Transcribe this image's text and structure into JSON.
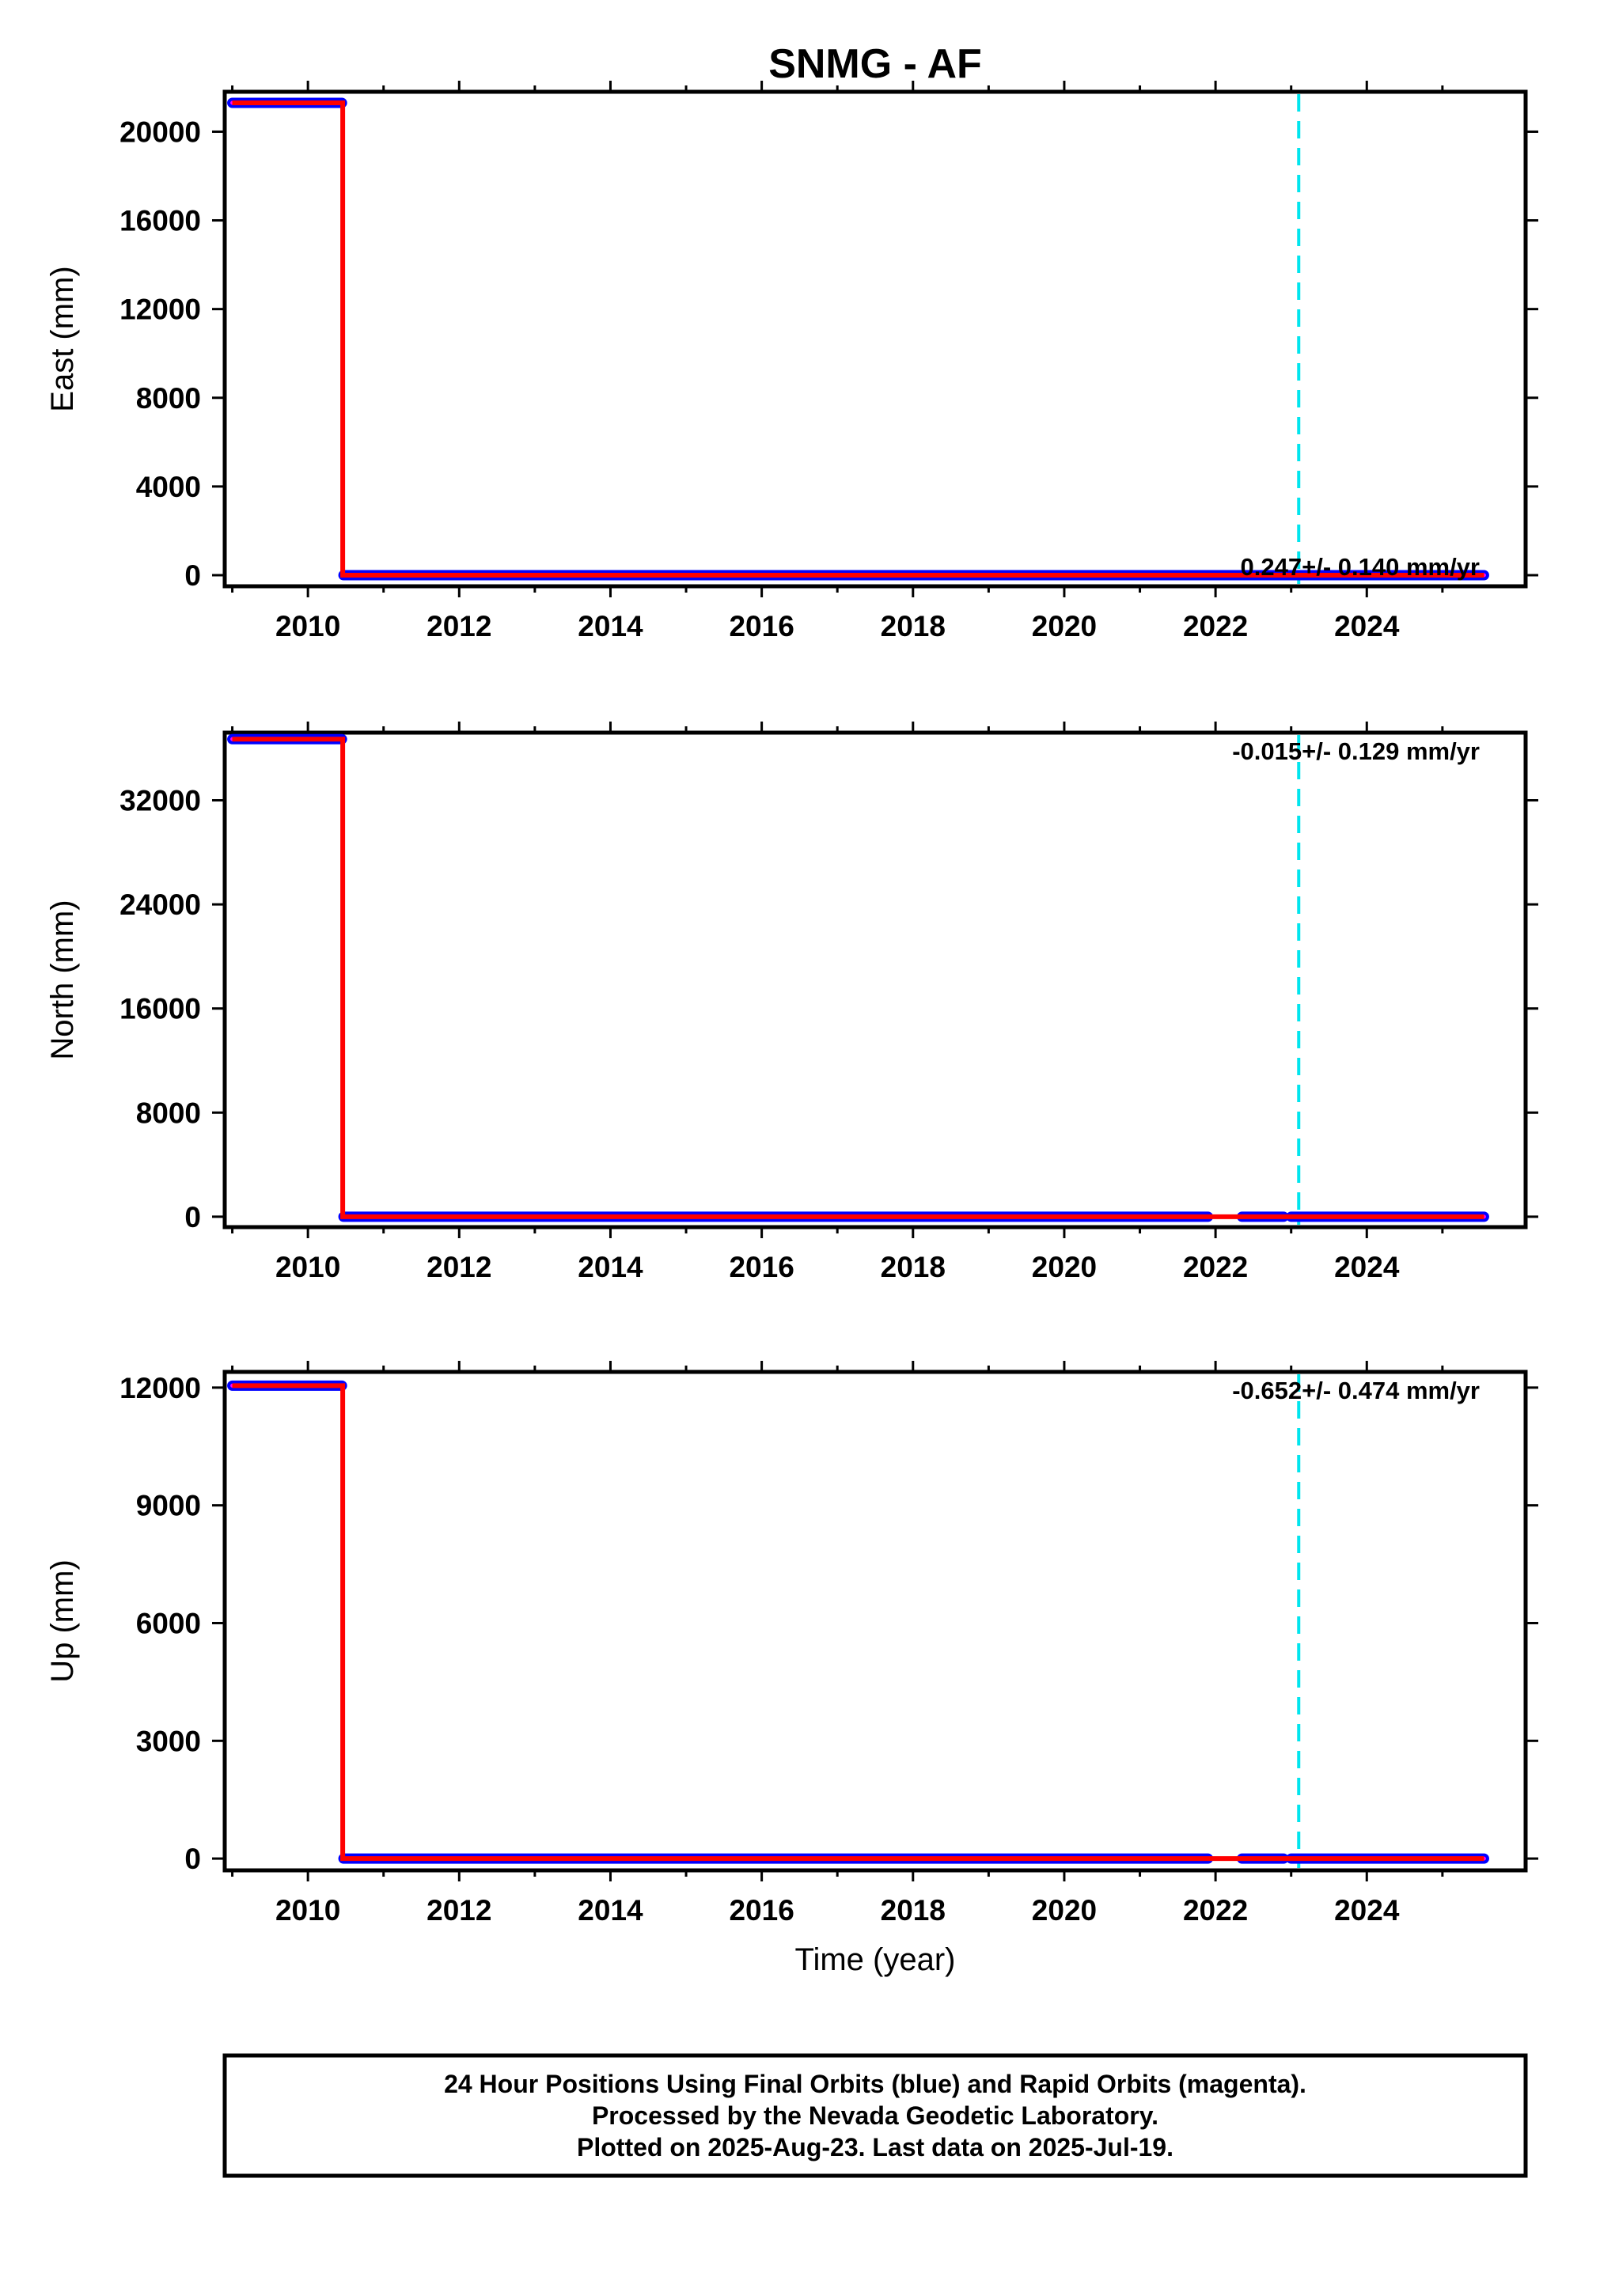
{
  "chart_data": {
    "type": "scatter",
    "title": "SNMG - AF",
    "xlabel": "Time (year)",
    "xlim": [
      2008.9,
      2026.1
    ],
    "xticks": [
      "2010",
      "2012",
      "2014",
      "2016",
      "2018",
      "2020",
      "2022",
      "2024"
    ],
    "reference_line": {
      "x": 2023.1,
      "color": "#00e5ee",
      "style": "dashed"
    },
    "colors": {
      "final_points": "#0000ff",
      "rapid_points": "#ff00ff",
      "model_fit": "#ff0000",
      "reference": "#00e5ee"
    },
    "panels": [
      {
        "ylabel": "East (mm)",
        "ylim": [
          -500,
          21800
        ],
        "yticks": [
          "0",
          "4000",
          "8000",
          "12000",
          "16000",
          "20000"
        ],
        "rate": "0.247+/- 0.140 mm/yr",
        "segments": [
          {
            "x": [
              2009.0,
              2010.45
            ],
            "y": 21300
          },
          {
            "x": [
              2010.47,
              2025.55
            ],
            "y": 0
          }
        ],
        "model": {
          "x": [
            2009.0,
            2010.46,
            2010.46,
            2025.55
          ],
          "y": [
            21300,
            21300,
            0,
            0
          ]
        }
      },
      {
        "ylabel": "North (mm)",
        "ylim": [
          -800,
          37200
        ],
        "yticks": [
          "0",
          "8000",
          "16000",
          "24000",
          "32000"
        ],
        "rate": "-0.015+/- 0.129 mm/yr",
        "segments": [
          {
            "x": [
              2009.0,
              2010.45
            ],
            "y": 36700
          },
          {
            "x": [
              2010.47,
              2021.9
            ],
            "y": 0
          },
          {
            "x": [
              2022.35,
              2022.9
            ],
            "y": 0
          },
          {
            "x": [
              2023.0,
              2025.55
            ],
            "y": 0
          }
        ],
        "model": {
          "x": [
            2009.0,
            2010.46,
            2010.46,
            2025.55
          ],
          "y": [
            36700,
            36700,
            0,
            0
          ]
        }
      },
      {
        "ylabel": "Up (mm)",
        "ylim": [
          -300,
          12400
        ],
        "yticks": [
          "0",
          "3000",
          "6000",
          "9000",
          "12000"
        ],
        "rate": "-0.652+/- 0.474 mm/yr",
        "segments": [
          {
            "x": [
              2009.0,
              2010.45
            ],
            "y": 12050
          },
          {
            "x": [
              2010.47,
              2021.9
            ],
            "y": 0
          },
          {
            "x": [
              2022.35,
              2022.9
            ],
            "y": 0
          },
          {
            "x": [
              2023.0,
              2025.55
            ],
            "y": 0
          }
        ],
        "model": {
          "x": [
            2009.0,
            2010.46,
            2010.46,
            2025.55
          ],
          "y": [
            12050,
            12050,
            0,
            0
          ]
        }
      }
    ]
  },
  "footer": {
    "line1": "24 Hour Positions Using Final Orbits (blue) and Rapid Orbits (magenta).",
    "line2": "Processed by the Nevada Geodetic Laboratory.",
    "line3": "Plotted on 2025-Aug-23. Last data on 2025-Jul-19."
  }
}
